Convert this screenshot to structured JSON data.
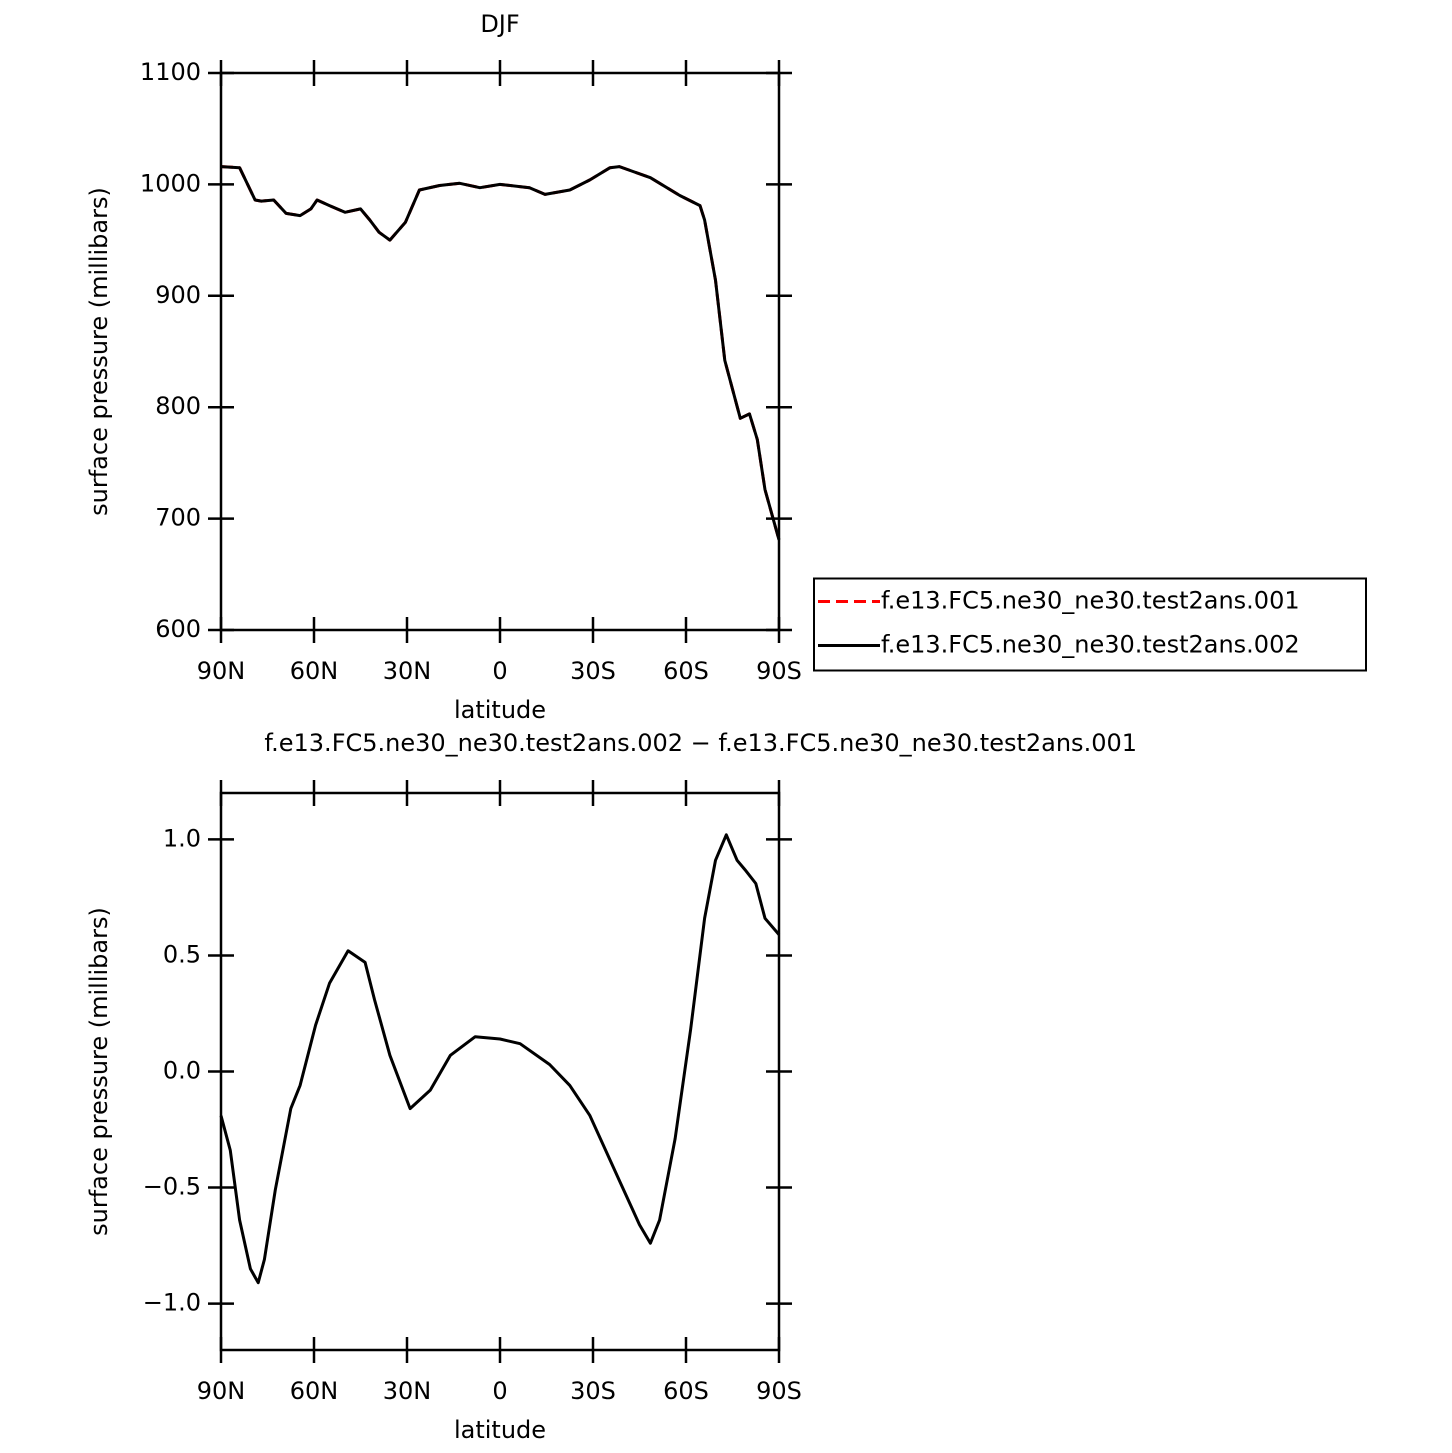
{
  "chart_data": [
    {
      "type": "line",
      "title": "DJF",
      "xlabel": "latitude",
      "ylabel": "surface pressure (millibars)",
      "xlim": [
        90,
        -90
      ],
      "xticks": [
        {
          "value": 90,
          "label": "90N"
        },
        {
          "value": 60,
          "label": "60N"
        },
        {
          "value": 30,
          "label": "30N"
        },
        0,
        {
          "value": -30,
          "label": "30S"
        },
        {
          "value": -60,
          "label": "60S"
        },
        {
          "value": -90,
          "label": "90S"
        }
      ],
      "ylim": [
        600,
        1100
      ],
      "yticks": [
        600,
        700,
        800,
        900,
        1000,
        1100
      ],
      "legend": "right",
      "x": [
        90,
        84,
        79,
        77,
        73,
        69,
        64.5,
        61,
        59,
        55,
        50,
        45,
        42,
        39,
        35.5,
        30.5,
        26,
        19.5,
        13,
        6.5,
        0,
        -9.5,
        -14.5,
        -22.5,
        -29,
        -35.5,
        -38.5,
        -48.5,
        -58,
        -64.5,
        -66,
        -69.5,
        -72.5,
        -77.5,
        -80.5,
        -83,
        -85.5,
        -90
      ],
      "series": [
        {
          "name": "f.e13.FC5.ne30_ne30.test2ans.001",
          "color": "#ff0000",
          "dash": "dashed",
          "values": [
            1016,
            1015,
            986,
            985,
            986,
            974,
            972,
            978,
            986,
            981,
            975,
            978,
            968,
            957,
            950,
            966,
            995,
            999,
            1001,
            997,
            1000,
            997,
            991,
            995,
            1004,
            1015,
            1016,
            1006,
            990,
            981,
            968,
            914,
            842,
            790,
            794,
            771,
            726,
            681
          ]
        },
        {
          "name": "f.e13.FC5.ne30_ne30.test2ans.002",
          "color": "#000000",
          "dash": "solid",
          "values": [
            1016,
            1015,
            986,
            985,
            986,
            974,
            972,
            978,
            986,
            981,
            975,
            978,
            968,
            957,
            950,
            966,
            995,
            999,
            1001,
            997,
            1000,
            997,
            991,
            995,
            1004,
            1015,
            1016,
            1006,
            990,
            981,
            968,
            914,
            842,
            790,
            794,
            771,
            726,
            681
          ]
        }
      ]
    },
    {
      "type": "line",
      "title": "f.e13.FC5.ne30_ne30.test2ans.002 − f.e13.FC5.ne30_ne30.test2ans.001",
      "xlabel": "latitude",
      "ylabel": "surface pressure (millibars)",
      "xlim": [
        90,
        -90
      ],
      "xticks": [
        {
          "value": 90,
          "label": "90N"
        },
        {
          "value": 60,
          "label": "60N"
        },
        {
          "value": 30,
          "label": "30N"
        },
        0,
        {
          "value": -30,
          "label": "30S"
        },
        {
          "value": -60,
          "label": "60S"
        },
        {
          "value": -90,
          "label": "90S"
        }
      ],
      "ylim": [
        -1.2,
        1.2
      ],
      "yticks": [
        {
          "value": -1,
          "label": "−1.0"
        },
        {
          "value": -0.5,
          "label": "−0.5"
        },
        {
          "value": 0,
          "label": "0.0"
        },
        0.5,
        {
          "value": 1,
          "label": "1.0"
        }
      ],
      "x": [
        90,
        87,
        84,
        80.5,
        78,
        76,
        72.5,
        67.5,
        64.5,
        59.5,
        55,
        49,
        43.5,
        40.5,
        35.5,
        29,
        22.5,
        16,
        8,
        0,
        -6.5,
        -16,
        -22.5,
        -29,
        -38.5,
        -45,
        -48.5,
        -51.5,
        -56.5,
        -61.5,
        -66,
        -69.5,
        -73,
        -76.5,
        -79,
        -82.5,
        -85.5,
        -90
      ],
      "series": [
        {
          "name": "difference",
          "color": "#000000",
          "dash": "solid",
          "values": [
            -0.19,
            -0.34,
            -0.64,
            -0.85,
            -0.91,
            -0.81,
            -0.51,
            -0.16,
            -0.06,
            0.2,
            0.38,
            0.52,
            0.47,
            0.31,
            0.07,
            -0.16,
            -0.08,
            0.07,
            0.15,
            0.14,
            0.12,
            0.03,
            -0.06,
            -0.19,
            -0.47,
            -0.66,
            -0.74,
            -0.64,
            -0.29,
            0.18,
            0.66,
            0.91,
            1.02,
            0.91,
            0.87,
            0.81,
            0.66,
            0.59
          ]
        }
      ]
    }
  ]
}
